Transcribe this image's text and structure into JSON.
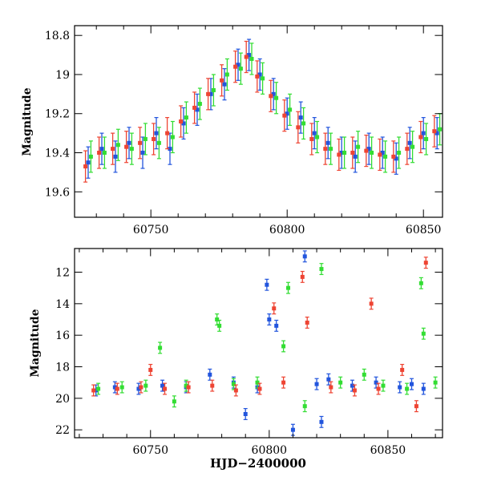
{
  "chart_data": [
    {
      "type": "scatter",
      "panel": "top",
      "xlabel": "",
      "ylabel": "Magnitude",
      "xlim": [
        60722,
        60857
      ],
      "ylim": [
        19.73,
        18.75
      ],
      "y_inverted": true,
      "x_ticks": [
        60750,
        60800,
        60850
      ],
      "y_ticks": [
        18.8,
        19,
        19.2,
        19.4,
        19.6
      ],
      "y_tick_labels": [
        "18.8",
        "19",
        "19.2",
        "19.4",
        "19.6"
      ],
      "series": [
        {
          "color": "#2255dd",
          "x": [
            60727,
            60732,
            60737,
            60742,
            60747,
            60752,
            60757,
            60762,
            60767,
            60772,
            60777,
            60782,
            60786,
            60790,
            60795,
            60800,
            60805,
            60810,
            60815,
            60820,
            60825,
            60830,
            60835,
            60840,
            60845,
            60850,
            60855
          ],
          "y": [
            19.45,
            19.38,
            19.42,
            19.35,
            19.4,
            19.3,
            19.38,
            19.25,
            19.18,
            19.1,
            19.05,
            18.95,
            18.9,
            19.0,
            19.1,
            19.2,
            19.22,
            19.3,
            19.35,
            19.4,
            19.42,
            19.38,
            19.4,
            19.43,
            19.35,
            19.3,
            19.3
          ]
        },
        {
          "color": "#33dd33",
          "x": [
            60728,
            60733,
            60738,
            60743,
            60748,
            60753,
            60758,
            60763,
            60768,
            60773,
            60778,
            60783,
            60787,
            60791,
            60796,
            60801,
            60806,
            60811,
            60816,
            60821,
            60826,
            60831,
            60836,
            60841,
            60846,
            60851,
            60856
          ],
          "y": [
            19.42,
            19.4,
            19.36,
            19.38,
            19.33,
            19.35,
            19.32,
            19.22,
            19.15,
            19.08,
            19.0,
            18.97,
            18.92,
            19.02,
            19.12,
            19.18,
            19.25,
            19.32,
            19.38,
            19.4,
            19.37,
            19.4,
            19.42,
            19.4,
            19.37,
            19.33,
            19.28
          ]
        },
        {
          "color": "#ee4433",
          "x": [
            60726,
            60731,
            60736,
            60741,
            60746,
            60751,
            60756,
            60761,
            60766,
            60771,
            60776,
            60781,
            60785,
            60789,
            60794,
            60799,
            60804,
            60809,
            60814,
            60819,
            60824,
            60829,
            60834,
            60839,
            60844,
            60849,
            60854
          ],
          "y": [
            19.47,
            19.4,
            19.38,
            19.37,
            19.35,
            19.33,
            19.3,
            19.24,
            19.17,
            19.1,
            19.03,
            18.96,
            18.91,
            19.01,
            19.11,
            19.21,
            19.27,
            19.33,
            19.38,
            19.41,
            19.4,
            19.39,
            19.41,
            19.42,
            19.38,
            19.32,
            19.29
          ]
        }
      ]
    },
    {
      "type": "scatter",
      "panel": "bottom",
      "xlabel": "HJD−2400000",
      "ylabel": "Magnitude",
      "xlim": [
        60718,
        60873
      ],
      "ylim": [
        22.5,
        10.5
      ],
      "y_inverted": true,
      "x_ticks": [
        60750,
        60800,
        60850
      ],
      "y_ticks": [
        12,
        14,
        16,
        18,
        20,
        22
      ],
      "y_tick_labels": [
        "12",
        "14",
        "16",
        "18",
        "20",
        "22"
      ],
      "series": [
        {
          "color": "#2255dd",
          "x": [
            60727,
            60735,
            60745,
            60755,
            60765,
            60775,
            60785,
            60795,
            60799,
            60800,
            60803,
            60815,
            60820,
            60825,
            60835,
            60845,
            60855,
            60860,
            60865,
            60790,
            60822,
            60810
          ],
          "y": [
            19.5,
            19.3,
            19.4,
            19.2,
            19.3,
            18.5,
            19.0,
            19.3,
            12.8,
            15.0,
            15.4,
            11.0,
            19.1,
            18.8,
            19.2,
            19.0,
            19.3,
            19.1,
            19.4,
            21.0,
            21.5,
            22.0
          ]
        },
        {
          "color": "#33dd33",
          "x": [
            60728,
            60738,
            60748,
            60754,
            60765,
            60778,
            60779,
            60785,
            60795,
            60806,
            60808,
            60822,
            60830,
            60840,
            60848,
            60858,
            60864,
            60865,
            60760,
            60815,
            60870
          ],
          "y": [
            19.4,
            19.3,
            19.2,
            16.8,
            19.2,
            15.0,
            15.4,
            19.1,
            19.0,
            16.7,
            13.0,
            11.8,
            19.0,
            18.5,
            19.2,
            19.4,
            12.7,
            15.9,
            20.2,
            20.5,
            19.0
          ]
        },
        {
          "color": "#ee4433",
          "x": [
            60726,
            60736,
            60746,
            60756,
            60766,
            60776,
            60786,
            60796,
            60802,
            60806,
            60814,
            60816,
            60826,
            60836,
            60843,
            60846,
            60856,
            60866,
            60750,
            60862
          ],
          "y": [
            19.5,
            19.4,
            19.3,
            19.4,
            19.3,
            19.2,
            19.5,
            19.4,
            14.3,
            19.0,
            12.3,
            15.2,
            19.3,
            19.5,
            14.0,
            19.4,
            18.2,
            11.4,
            18.2,
            20.5
          ]
        }
      ]
    }
  ]
}
